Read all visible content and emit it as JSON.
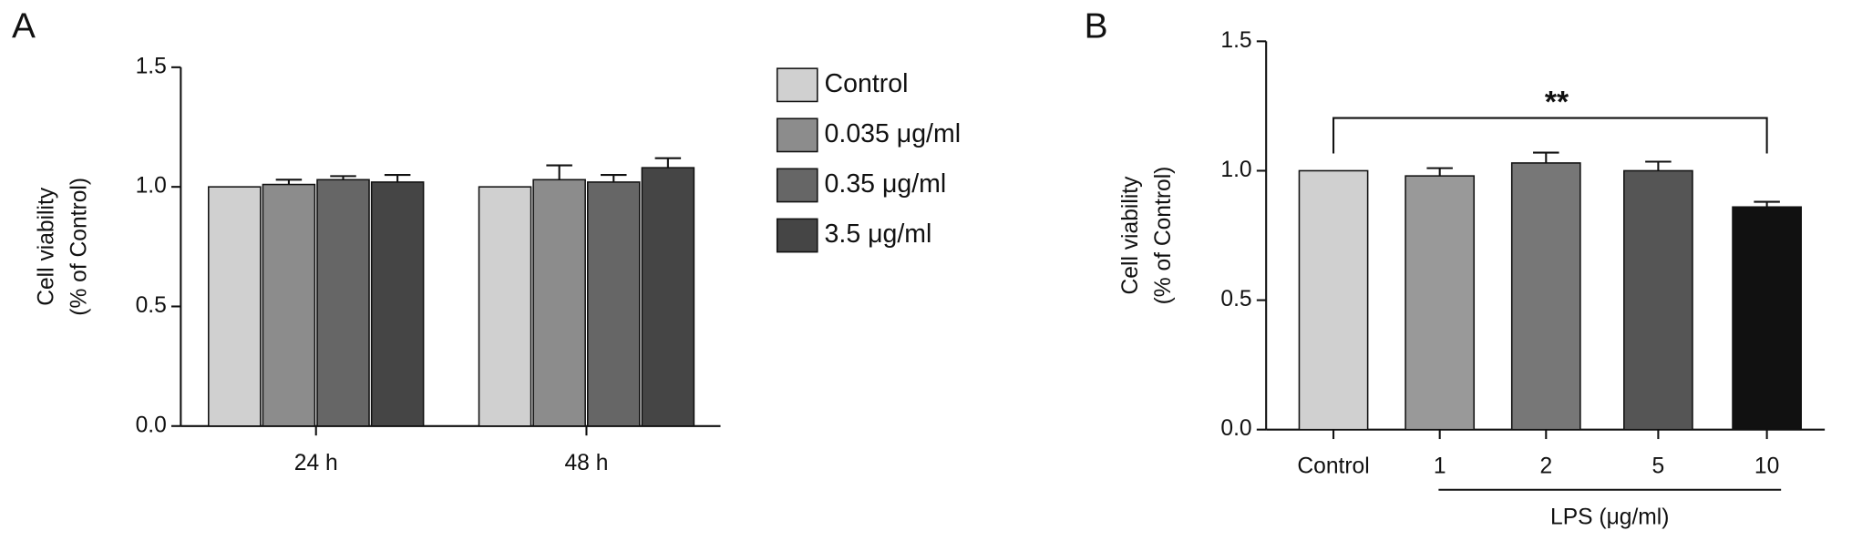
{
  "chart_data": [
    {
      "type": "grouped-bar",
      "panel": "A",
      "ylabel": [
        "Cell viability",
        "(% of Control)"
      ],
      "categories": [
        "24 h",
        "48 h"
      ],
      "series": [
        {
          "name": "Control",
          "color": "#d0d0d0",
          "values": [
            1.0,
            1.0
          ],
          "errors": [
            0,
            0
          ]
        },
        {
          "name": "0.035 μg/ml",
          "color": "#8c8c8c",
          "values": [
            1.01,
            1.03
          ],
          "errors": [
            0.02,
            0.06
          ]
        },
        {
          "name": "0.35 μg/ml",
          "color": "#666666",
          "values": [
            1.03,
            1.02
          ],
          "errors": [
            0.015,
            0.03
          ]
        },
        {
          "name": "3.5 μg/ml",
          "color": "#454545",
          "values": [
            1.02,
            1.08
          ],
          "errors": [
            0.03,
            0.04
          ]
        }
      ],
      "ylim": [
        0,
        1.5
      ],
      "yticks": [
        {
          "value": 0,
          "label": "0.0"
        },
        {
          "value": 0.5,
          "label": "0.5"
        },
        {
          "value": 1,
          "label": "1.0"
        },
        {
          "value": 1.5,
          "label": "1.5"
        }
      ]
    },
    {
      "type": "bar",
      "panel": "B",
      "ylabel": [
        "Cell viability",
        "(% of Control)"
      ],
      "xlabel": "LPS (μg/ml)",
      "categories": [
        "Control",
        "1",
        "2",
        "5",
        "10"
      ],
      "values": [
        1.0,
        0.98,
        1.03,
        1.0,
        0.86
      ],
      "errors": [
        0,
        0.03,
        0.04,
        0.035,
        0.02
      ],
      "colors": [
        "#d0d0d0",
        "#999999",
        "#777777",
        "#555555",
        "#111111"
      ],
      "annotation": "**",
      "ylim": [
        0,
        1.5
      ],
      "yticks": [
        {
          "value": 0,
          "label": "0.0"
        },
        {
          "value": 0.5,
          "label": "0.5"
        },
        {
          "value": 1,
          "label": "1.0"
        },
        {
          "value": 1.5,
          "label": "1.5"
        }
      ]
    }
  ]
}
